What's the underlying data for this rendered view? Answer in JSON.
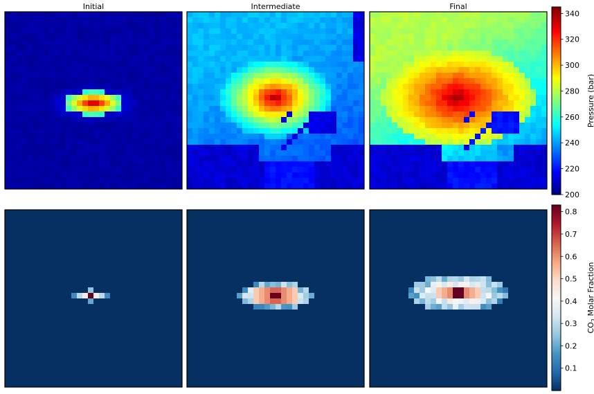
{
  "titles": [
    "Initial",
    "Intermediate",
    "Final"
  ],
  "colorbars": {
    "pressure": {
      "label": "Pressure (bar)",
      "range": [
        200,
        345
      ],
      "ticks": [
        "200",
        "220",
        "240",
        "260",
        "280",
        "300",
        "320",
        "340"
      ],
      "tick_values": [
        200,
        220,
        240,
        260,
        280,
        300,
        320,
        340
      ],
      "colormap": "jet"
    },
    "co2": {
      "label_prefix": "CO",
      "label_sub": "2",
      "label_suffix": " Molar Fraction",
      "range": [
        0.0,
        0.83
      ],
      "ticks": [
        "0.1",
        "0.2",
        "0.3",
        "0.4",
        "0.5",
        "0.6",
        "0.7",
        "0.8"
      ],
      "tick_values": [
        0.1,
        0.2,
        0.3,
        0.4,
        0.5,
        0.6,
        0.7,
        0.8
      ],
      "colormap": "RdBu_r"
    }
  },
  "chart_data": [
    {
      "type": "heatmap",
      "title": "Initial",
      "variable": "pressure",
      "grid": [
        32,
        32
      ],
      "background": 205,
      "plume_center": [
        15.5,
        16
      ],
      "plume_peak": 342,
      "plume_radius": [
        5.5,
        2.2
      ],
      "halo_radius": [
        9,
        3.5
      ],
      "halo_level": 215
    },
    {
      "type": "heatmap",
      "title": "Intermediate",
      "variable": "pressure",
      "grid": [
        32,
        32
      ],
      "background": 245,
      "plume_center": [
        15.5,
        15
      ],
      "plume_peak": 342,
      "plume_radius": [
        6.5,
        4.5
      ],
      "far_level": 228
    },
    {
      "type": "heatmap",
      "title": "Final",
      "variable": "pressure",
      "grid": [
        32,
        32
      ],
      "background": 280,
      "plume_center": [
        15.5,
        15
      ],
      "plume_peak": 342,
      "plume_radius": [
        8.5,
        5.5
      ],
      "far_level": 235
    },
    {
      "type": "heatmap",
      "variable": "co2",
      "grid": [
        32,
        32
      ],
      "background": 0.0,
      "cells": [
        [
          15,
          15,
          0.83
        ],
        [
          14,
          15,
          0.45
        ],
        [
          16,
          15,
          0.45
        ],
        [
          13,
          15,
          0.3
        ],
        [
          17,
          15,
          0.3
        ],
        [
          15,
          14,
          0.25
        ],
        [
          15,
          16,
          0.2
        ],
        [
          12,
          15,
          0.15
        ],
        [
          18,
          15,
          0.15
        ]
      ]
    },
    {
      "type": "heatmap",
      "variable": "co2",
      "grid": [
        32,
        32
      ],
      "background": 0.0,
      "plume_center": [
        15.5,
        15
      ],
      "plume_radius": [
        7,
        2.5
      ],
      "plume_peak": 0.83
    },
    {
      "type": "heatmap",
      "variable": "co2",
      "grid": [
        32,
        32
      ],
      "background": 0.0,
      "plume_center": [
        15.5,
        14.5
      ],
      "plume_radius": [
        9,
        3.5
      ],
      "plume_peak": 0.83
    }
  ]
}
